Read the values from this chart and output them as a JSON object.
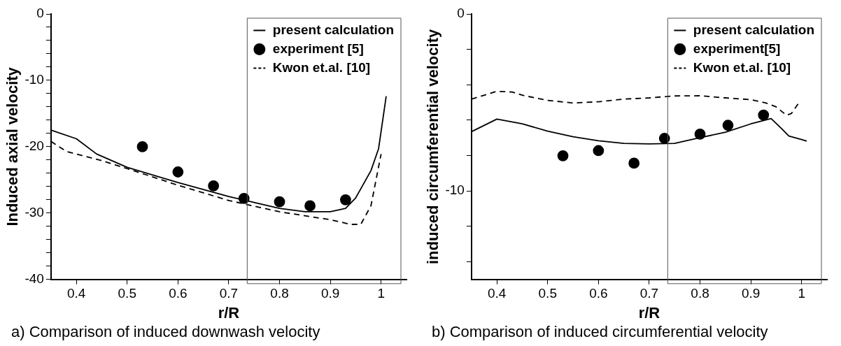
{
  "chart_data": [
    {
      "type": "line",
      "xlabel": "r/R",
      "ylabel": "Induced axial velocity",
      "xlim": [
        0.35,
        1.05
      ],
      "ylim": [
        -40,
        0
      ],
      "xticks": [
        0.4,
        0.5,
        0.6,
        0.7,
        0.8,
        0.9,
        1
      ],
      "yticks": [
        -40,
        {
          "value": -38,
          "label": null
        },
        {
          "value": -36,
          "label": null
        },
        {
          "value": -34,
          "label": null
        },
        {
          "value": -32,
          "label": null
        },
        -30,
        {
          "value": -28,
          "label": null
        },
        {
          "value": -26,
          "label": null
        },
        {
          "value": -24,
          "label": null
        },
        {
          "value": -22,
          "label": null
        },
        -20,
        {
          "value": -18,
          "label": null
        },
        {
          "value": -16,
          "label": null
        },
        {
          "value": -14,
          "label": null
        },
        {
          "value": -12,
          "label": null
        },
        -10,
        {
          "value": -8,
          "label": null
        },
        {
          "value": -6,
          "label": null
        },
        {
          "value": -4,
          "label": null
        },
        {
          "value": -2,
          "label": null
        },
        0
      ],
      "grid": false,
      "legend": "top right",
      "annotations": [
        "a) Comparison of induced downwash velocity"
      ],
      "series": [
        {
          "name": "present calculation",
          "type": "line",
          "line_style": "solid",
          "marker": "none",
          "color": "#000000",
          "x": [
            0.35,
            0.4,
            0.44,
            0.5,
            0.6,
            0.7,
            0.8,
            0.85,
            0.9,
            0.93,
            0.95,
            0.98,
            0.995,
            1.01
          ],
          "values": [
            -17.5,
            -18.8,
            -21.1,
            -23.1,
            -25.4,
            -27.5,
            -29.3,
            -29.8,
            -29.8,
            -29.3,
            -27.7,
            -23.6,
            -20.3,
            -12.4
          ]
        },
        {
          "name": "experiment [5]",
          "type": "scatter",
          "marker": "circle",
          "color": "#000000",
          "x": [
            0.53,
            0.6,
            0.67,
            0.73,
            0.8,
            0.86,
            0.93
          ],
          "values": [
            -20.0,
            -23.8,
            -25.9,
            -27.8,
            -28.3,
            -28.9,
            -28.0
          ]
        },
        {
          "name": "Kwon et.al. [10]",
          "type": "line",
          "line_style": "dashed",
          "marker": "none",
          "color": "#000000",
          "x": [
            0.35,
            0.38,
            0.4,
            0.45,
            0.5,
            0.6,
            0.7,
            0.8,
            0.9,
            0.94,
            0.96,
            0.98,
            1.0
          ],
          "values": [
            -19.2,
            -20.7,
            -21.1,
            -22.1,
            -23.3,
            -25.8,
            -28.1,
            -29.8,
            -31.0,
            -31.7,
            -31.7,
            -28.9,
            -21.1
          ]
        }
      ]
    },
    {
      "type": "line",
      "xlabel": "r/R",
      "ylabel": "induced circumferential velocity",
      "xlim": [
        0.35,
        1.05
      ],
      "ylim": [
        -15,
        0
      ],
      "xticks": [
        0.4,
        0.5,
        0.6,
        0.7,
        0.8,
        0.9,
        1
      ],
      "yticks": [
        {
          "value": -14,
          "label": null
        },
        {
          "value": -12,
          "label": null
        },
        -10,
        {
          "value": -8,
          "label": null
        },
        {
          "value": -6,
          "label": null
        },
        {
          "value": -4,
          "label": null
        },
        {
          "value": -2,
          "label": null
        },
        0
      ],
      "grid": false,
      "legend": "top right",
      "annotations": [
        "b) Comparison of induced circumferential velocity"
      ],
      "series": [
        {
          "name": "present calculation",
          "type": "line",
          "line_style": "solid",
          "marker": "none",
          "color": "#000000",
          "x": [
            0.35,
            0.4,
            0.45,
            0.5,
            0.55,
            0.6,
            0.65,
            0.7,
            0.75,
            0.8,
            0.85,
            0.9,
            0.94,
            0.96,
            0.975,
            1.0,
            1.01
          ],
          "values": [
            -6.65,
            -5.94,
            -6.21,
            -6.62,
            -6.94,
            -7.16,
            -7.31,
            -7.34,
            -7.31,
            -6.99,
            -6.68,
            -6.21,
            -5.91,
            -6.46,
            -6.9,
            -7.09,
            -7.18
          ]
        },
        {
          "name": "experiment[5]",
          "type": "scatter",
          "marker": "circle",
          "color": "#000000",
          "x": [
            0.53,
            0.6,
            0.67,
            0.73,
            0.8,
            0.855,
            0.925
          ],
          "values": [
            -8.01,
            -7.72,
            -8.43,
            -7.03,
            -6.79,
            -6.29,
            -5.71
          ]
        },
        {
          "name": "Kwon et.al. [10]",
          "type": "line",
          "line_style": "dashed",
          "marker": "none",
          "color": "#000000",
          "x": [
            0.35,
            0.4,
            0.43,
            0.45,
            0.5,
            0.55,
            0.6,
            0.65,
            0.7,
            0.75,
            0.8,
            0.85,
            0.9,
            0.93,
            0.95,
            0.97,
            0.98,
            0.995
          ],
          "values": [
            -4.81,
            -4.37,
            -4.41,
            -4.59,
            -4.88,
            -5.03,
            -4.96,
            -4.81,
            -4.74,
            -4.63,
            -4.62,
            -4.74,
            -4.84,
            -5.03,
            -5.25,
            -5.72,
            -5.62,
            -5.0
          ]
        }
      ]
    }
  ]
}
